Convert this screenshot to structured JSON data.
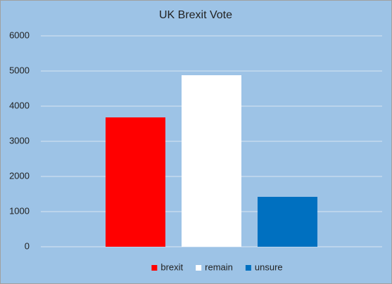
{
  "chart_data": {
    "type": "bar",
    "title": "UK Brexit Vote",
    "categories": [
      null
    ],
    "series": [
      {
        "name": "brexit",
        "color": "#ff0000",
        "values": [
          3680
        ]
      },
      {
        "name": "remain",
        "color": "#ffffff",
        "values": [
          4880
        ]
      },
      {
        "name": "unsure",
        "color": "#0070c0",
        "values": [
          1420
        ]
      }
    ],
    "ylim": [
      0,
      6000
    ],
    "yticks": [
      0,
      1000,
      2000,
      3000,
      4000,
      5000,
      6000
    ],
    "grid": true,
    "legend": "bottom",
    "background": "#9dc3e6"
  }
}
